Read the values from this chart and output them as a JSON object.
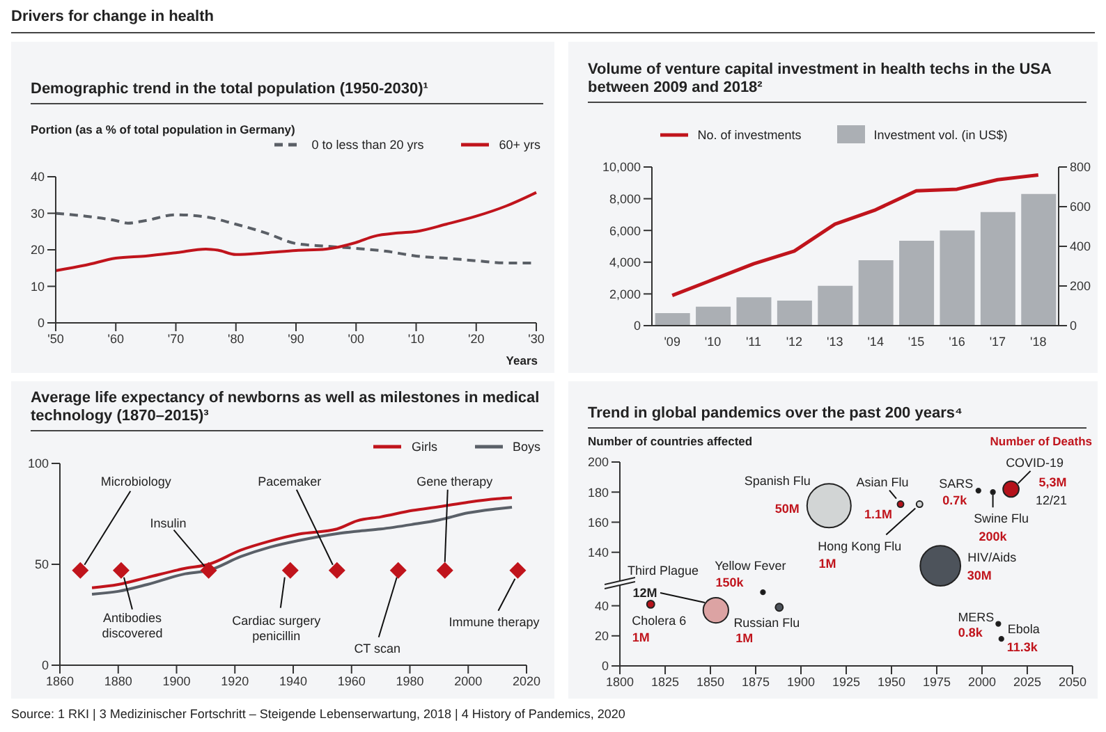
{
  "chart_data": [
    {
      "type": "line",
      "title": "Demographic trend in the total population (1950-2030)¹",
      "ylabel": "Portion (as a % of total population in Germany)",
      "xlabel": "Years",
      "series": [
        {
          "name": "0 to less than 20 yrs",
          "color": "#5a5f66",
          "line_style": "dashed",
          "x": [
            1950,
            1955,
            1960,
            1962,
            1965,
            1970,
            1975,
            1980,
            1985,
            1990,
            1995,
            2000,
            2005,
            2010,
            2015,
            2020,
            2025,
            2030
          ],
          "values": [
            30,
            29.2,
            28,
            27.3,
            28,
            29.6,
            29,
            27,
            24.6,
            21.7,
            21,
            20.4,
            19.6,
            18.3,
            17.7,
            17,
            16.4,
            16.4
          ]
        },
        {
          "name": "60+ yrs",
          "color": "#c0141c",
          "line_style": "solid",
          "x": [
            1950,
            1955,
            1960,
            1965,
            1970,
            1975,
            1977,
            1980,
            1985,
            1990,
            1995,
            2000,
            2003,
            2007,
            2010,
            2015,
            2020,
            2025,
            2030
          ],
          "values": [
            14.3,
            15.8,
            17.7,
            18.3,
            19.2,
            20.2,
            19.9,
            18.7,
            19.2,
            19.8,
            20.2,
            22,
            23.7,
            24.6,
            25,
            27,
            29.2,
            32,
            35.7
          ]
        }
      ],
      "xlim": [
        1950,
        2030
      ],
      "xticks": [
        {
          "value": 1950,
          "label": "'50"
        },
        {
          "value": 1960,
          "label": "'60"
        },
        {
          "value": 1970,
          "label": "'70"
        },
        {
          "value": 1980,
          "label": "'80"
        },
        {
          "value": 1990,
          "label": "'90"
        },
        {
          "value": 2000,
          "label": "'00"
        },
        {
          "value": 2010,
          "label": "'10"
        },
        {
          "value": 2020,
          "label": "'20"
        },
        {
          "value": 2030,
          "label": "'30"
        }
      ],
      "ylim": [
        0,
        40
      ],
      "yticks": [
        0,
        10,
        20,
        30,
        40
      ],
      "legend": "top right",
      "marker": "none",
      "annotations": [
        "Drivers for change in health",
        "Source: 1 RKI | 3 Medizinischer Fortschritt – Steigende Lebenserwartung, 2018 | 4 History of Pandemics, 2020"
      ]
    },
    {
      "type": "bar",
      "title": "Volume of venture capital investment in health techs in the USA between 2009 and 2018²",
      "categories": [
        "'09",
        "'10",
        "'11",
        "'12",
        "'13",
        "'14",
        "'15",
        "'16",
        "'17",
        "'18"
      ],
      "series": [
        {
          "name": "No. of investments",
          "type": "line",
          "color": "#c0141c",
          "values": [
            1900,
            2900,
            3900,
            4700,
            6400,
            7300,
            8500,
            8600,
            9200,
            9500
          ]
        },
        {
          "name": "Investment vol. (in US$)",
          "type": "bar",
          "axis": "y2",
          "color": "#abafb4",
          "values": [
            63,
            96,
            143,
            126,
            201,
            330,
            428,
            480,
            573,
            664
          ]
        }
      ],
      "ylim": [
        0,
        10000
      ],
      "yticks": [
        0,
        {
          "value": 2000,
          "label": "2,000"
        },
        {
          "value": 4000,
          "label": "4,000"
        },
        {
          "value": 6000,
          "label": "6,000"
        },
        {
          "value": 8000,
          "label": "8,000"
        },
        {
          "value": 10000,
          "label": "10,000"
        }
      ],
      "y2lim": [
        0,
        800
      ],
      "y2ticks": [
        0,
        200,
        400,
        600,
        800
      ],
      "legend": "top",
      "marker": "none"
    },
    {
      "type": "line",
      "title": "Average life expectancy of newborns as well as milestones in medical technology (1870–2015)³",
      "series": [
        {
          "name": "Girls",
          "color": "#c0141c",
          "x": [
            1871,
            1880,
            1890,
            1903,
            1911,
            1922,
            1932,
            1942,
            1955,
            1962,
            1970,
            1981,
            1990,
            2000,
            2010,
            2015
          ],
          "values": [
            38.4,
            40,
            43.5,
            48,
            50,
            57,
            61.5,
            65,
            67.5,
            71.6,
            73.5,
            76.7,
            78.5,
            80.8,
            82.5,
            83
          ]
        },
        {
          "name": "Boys",
          "color": "#5a6068",
          "x": [
            1871,
            1880,
            1890,
            1903,
            1911,
            1922,
            1932,
            1942,
            1955,
            1962,
            1970,
            1981,
            1990,
            2000,
            2010,
            2015
          ],
          "values": [
            35.2,
            36.6,
            40,
            45.3,
            47,
            53.8,
            58.5,
            61.8,
            65.2,
            66.4,
            67.5,
            69.8,
            72,
            75.5,
            77.5,
            78.3
          ]
        },
        {
          "type": "scatter",
          "color": "#c0141c",
          "marker": "diamond",
          "x": [
            1867,
            1881,
            1911,
            1939,
            1955,
            1976,
            1992,
            2017
          ],
          "values": [
            47,
            47,
            47,
            47,
            47,
            47,
            47,
            47
          ]
        }
      ],
      "xlim": [
        1860,
        2020
      ],
      "xticks": [
        1860,
        1880,
        1900,
        1920,
        1940,
        1960,
        1980,
        2000,
        2020
      ],
      "ylim": [
        0,
        100
      ],
      "yticks": [
        0,
        50,
        100
      ],
      "legend": "top right",
      "marker": "none",
      "annotations": [
        {
          "text": "Microbiology",
          "x": 1867,
          "y": 47
        },
        {
          "text": "Antibodies discovered",
          "x": 1881,
          "y": 47
        },
        {
          "text": "Insulin",
          "x": 1911,
          "y": 47
        },
        {
          "text": "Cardiac surgery penicillin",
          "x": 1939,
          "y": 47
        },
        {
          "text": "Pacemaker",
          "x": 1955,
          "y": 47
        },
        {
          "text": "CT scan",
          "x": 1976,
          "y": 47
        },
        {
          "text": "Gene therapy",
          "x": 1992,
          "y": 47
        },
        {
          "text": "Immune therapy",
          "x": 2017,
          "y": 47
        }
      ]
    },
    {
      "type": "bubble",
      "title": "Trend in global pandemics over the past 200 years⁴",
      "ylabel": "Number of countries affected",
      "tick_labels": "y",
      "x": [
        1915.5,
        1955,
        1965.5,
        1977,
        1998,
        2006,
        2016
      ],
      "values": [
        171,
        172,
        172,
        131,
        181,
        180,
        182
      ],
      "sizes": [
        1,
        0.02,
        0.02,
        0.84,
        0.01,
        0.01,
        0.13
      ],
      "colors": [
        "#d2d5d5",
        "#b5121b",
        "#d2d5d5",
        "#4d535b",
        "#1a1a1a",
        "#1a1a1a",
        "#b5121b"
      ],
      "xlim": [
        1800,
        2050
      ],
      "xticks": [
        1800,
        1825,
        1850,
        1875,
        1900,
        1925,
        1950,
        1975,
        2000,
        2025,
        2050
      ],
      "ylim": [
        120,
        200
      ],
      "yticks": [
        140,
        160,
        180,
        200
      ],
      "annotations": [
        "Number of Deaths",
        {
          "text": "Spanish Flu",
          "x": 1915.5,
          "y": 171
        },
        {
          "text": "50M",
          "x": 1915.5,
          "y": 171
        },
        {
          "text": "Asian Flu",
          "x": 1955,
          "y": 172
        },
        {
          "text": "1.1M",
          "x": 1955,
          "y": 172
        },
        {
          "text": "Hong Kong Flu",
          "x": 1965.5,
          "y": 172
        },
        "1M",
        {
          "text": "HIV/Aids",
          "x": 1977,
          "y": 131
        },
        {
          "text": "30M",
          "x": 1977,
          "y": 131
        },
        {
          "text": "SARS",
          "x": 1998,
          "y": 181
        },
        {
          "text": "0.7k",
          "x": 1998,
          "y": 181
        },
        {
          "text": "Swine Flu",
          "x": 2006,
          "y": 180
        },
        {
          "text": "200k",
          "x": 2006,
          "y": 180
        },
        {
          "text": "COVID-19",
          "x": 2016,
          "y": 182
        },
        {
          "text": "5,3M",
          "x": 2016,
          "y": 182
        },
        {
          "text": "12/21",
          "x": 2016,
          "y": 182
        }
      ]
    },
    {
      "type": "bubble",
      "x": [
        1817,
        1853,
        1879,
        1888,
        2009,
        2010.7
      ],
      "values": [
        41,
        37,
        49,
        39,
        28,
        18
      ],
      "sizes": [
        0.09,
        1,
        0.03,
        0.09,
        0.03,
        0.03
      ],
      "colors": [
        "#b5121b",
        "#dca3a3",
        "#1a1a1a",
        "#4d535b",
        "#1a1a1a",
        "#1a1a1a"
      ],
      "xlim": [
        1800,
        2050
      ],
      "xticks": [
        1800,
        1825,
        1850,
        1875,
        1900,
        1925,
        1950,
        1975,
        2000,
        2025,
        2050
      ],
      "ylim": [
        0,
        56
      ],
      "yticks": [
        0,
        20,
        40
      ],
      "annotations": [
        {
          "text": "Cholera 6",
          "x": 1817,
          "y": 41
        },
        {
          "text": "1M",
          "x": 1817,
          "y": 41
        },
        "Third Plague",
        "12M",
        {
          "text": "Yellow Fever",
          "x": 1879,
          "y": 49
        },
        {
          "text": "150k",
          "x": 1879,
          "y": 49
        },
        {
          "text": "Russian Flu",
          "x": 1888,
          "y": 39
        },
        {
          "text": "1M",
          "x": 1888,
          "y": 39
        },
        {
          "text": "MERS",
          "x": 2009,
          "y": 28
        },
        {
          "text": "0.8k",
          "x": 2009,
          "y": 28
        },
        {
          "text": "Ebola",
          "x": 2010.7,
          "y": 18
        },
        {
          "text": "11.3k",
          "x": 2010.7,
          "y": 18
        }
      ]
    }
  ]
}
